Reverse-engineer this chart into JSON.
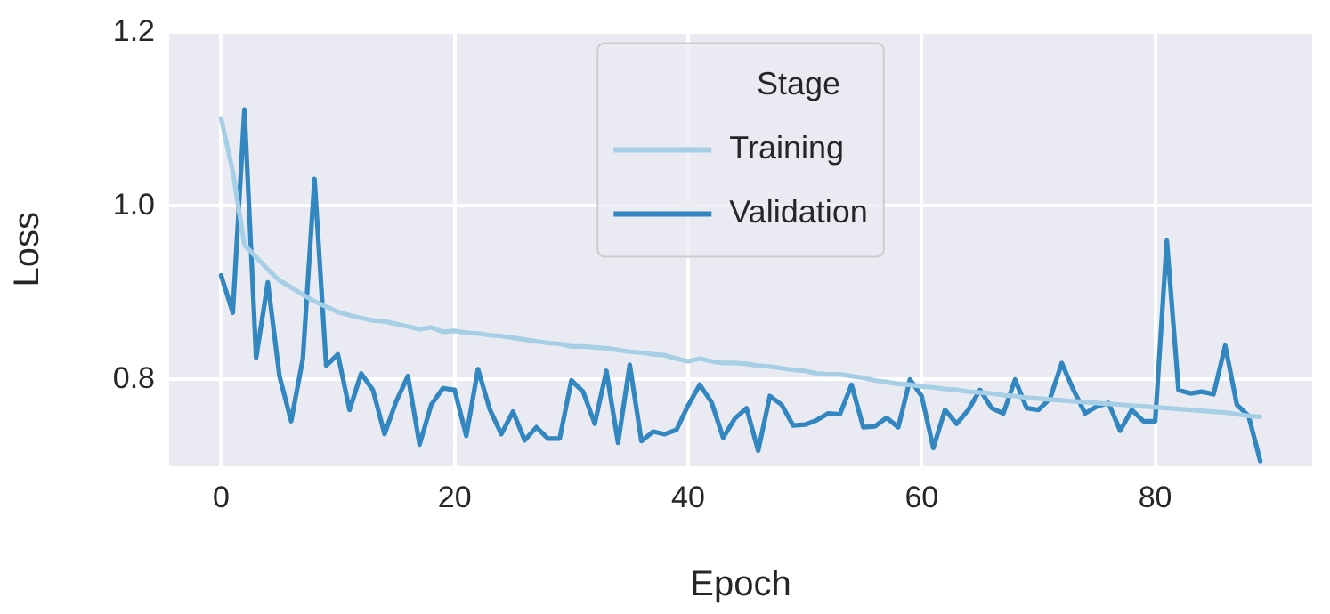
{
  "chart_data": {
    "type": "line",
    "xlabel": "Epoch",
    "ylabel": "Loss",
    "legend_title": "Stage",
    "legend": "top",
    "grid": true,
    "marker": "none",
    "line_style": "solid",
    "x": [
      0,
      1,
      2,
      3,
      4,
      5,
      6,
      7,
      8,
      9,
      10,
      11,
      12,
      13,
      14,
      15,
      16,
      17,
      18,
      19,
      20,
      21,
      22,
      23,
      24,
      25,
      26,
      27,
      28,
      29,
      30,
      31,
      32,
      33,
      34,
      35,
      36,
      37,
      38,
      39,
      40,
      41,
      42,
      43,
      44,
      45,
      46,
      47,
      48,
      49,
      50,
      51,
      52,
      53,
      54,
      55,
      56,
      57,
      58,
      59,
      60,
      61,
      62,
      63,
      64,
      65,
      66,
      67,
      68,
      69,
      70,
      71,
      72,
      73,
      74,
      75,
      76,
      77,
      78,
      79,
      80,
      81,
      82,
      83,
      84,
      85,
      86,
      87,
      88,
      89
    ],
    "xlim": [
      -4.45,
      93.45
    ],
    "xticks": [
      0,
      20,
      40,
      60,
      80
    ],
    "ylim": [
      0.7,
      1.2
    ],
    "yticks": [
      0.8,
      {
        "value": 1,
        "label": "1.0"
      },
      1.2
    ],
    "series": [
      {
        "name": "Training",
        "color": "#a6cfe6",
        "values": [
          1.101,
          1.04,
          0.955,
          0.941,
          0.927,
          0.914,
          0.906,
          0.898,
          0.89,
          0.884,
          0.878,
          0.874,
          0.871,
          0.868,
          0.867,
          0.864,
          0.861,
          0.858,
          0.86,
          0.855,
          0.856,
          0.854,
          0.853,
          0.851,
          0.85,
          0.848,
          0.846,
          0.844,
          0.842,
          0.841,
          0.838,
          0.838,
          0.837,
          0.836,
          0.834,
          0.832,
          0.831,
          0.829,
          0.828,
          0.824,
          0.821,
          0.824,
          0.821,
          0.819,
          0.819,
          0.818,
          0.816,
          0.815,
          0.813,
          0.811,
          0.81,
          0.807,
          0.806,
          0.806,
          0.804,
          0.802,
          0.799,
          0.797,
          0.795,
          0.794,
          0.792,
          0.791,
          0.789,
          0.788,
          0.786,
          0.785,
          0.784,
          0.782,
          0.781,
          0.779,
          0.778,
          0.777,
          0.776,
          0.775,
          0.774,
          0.773,
          0.772,
          0.771,
          0.77,
          0.769,
          0.768,
          0.767,
          0.766,
          0.765,
          0.764,
          0.763,
          0.762,
          0.76,
          0.758,
          0.757
        ]
      },
      {
        "name": "Validation",
        "color": "#3387c0",
        "values": [
          0.92,
          0.877,
          1.111,
          0.825,
          0.912,
          0.804,
          0.752,
          0.824,
          1.031,
          0.816,
          0.829,
          0.765,
          0.807,
          0.788,
          0.737,
          0.775,
          0.804,
          0.725,
          0.771,
          0.79,
          0.788,
          0.735,
          0.812,
          0.766,
          0.737,
          0.763,
          0.73,
          0.745,
          0.732,
          0.732,
          0.799,
          0.786,
          0.749,
          0.81,
          0.727,
          0.817,
          0.729,
          0.74,
          0.737,
          0.742,
          0.77,
          0.794,
          0.774,
          0.733,
          0.755,
          0.767,
          0.718,
          0.781,
          0.771,
          0.747,
          0.748,
          0.753,
          0.761,
          0.76,
          0.794,
          0.745,
          0.746,
          0.756,
          0.745,
          0.8,
          0.781,
          0.721,
          0.765,
          0.749,
          0.765,
          0.788,
          0.767,
          0.761,
          0.8,
          0.767,
          0.765,
          0.778,
          0.819,
          0.788,
          0.761,
          0.769,
          0.773,
          0.741,
          0.765,
          0.752,
          0.752,
          0.96,
          0.788,
          0.784,
          0.786,
          0.783,
          0.839,
          0.771,
          0.758,
          0.706
        ]
      }
    ]
  }
}
